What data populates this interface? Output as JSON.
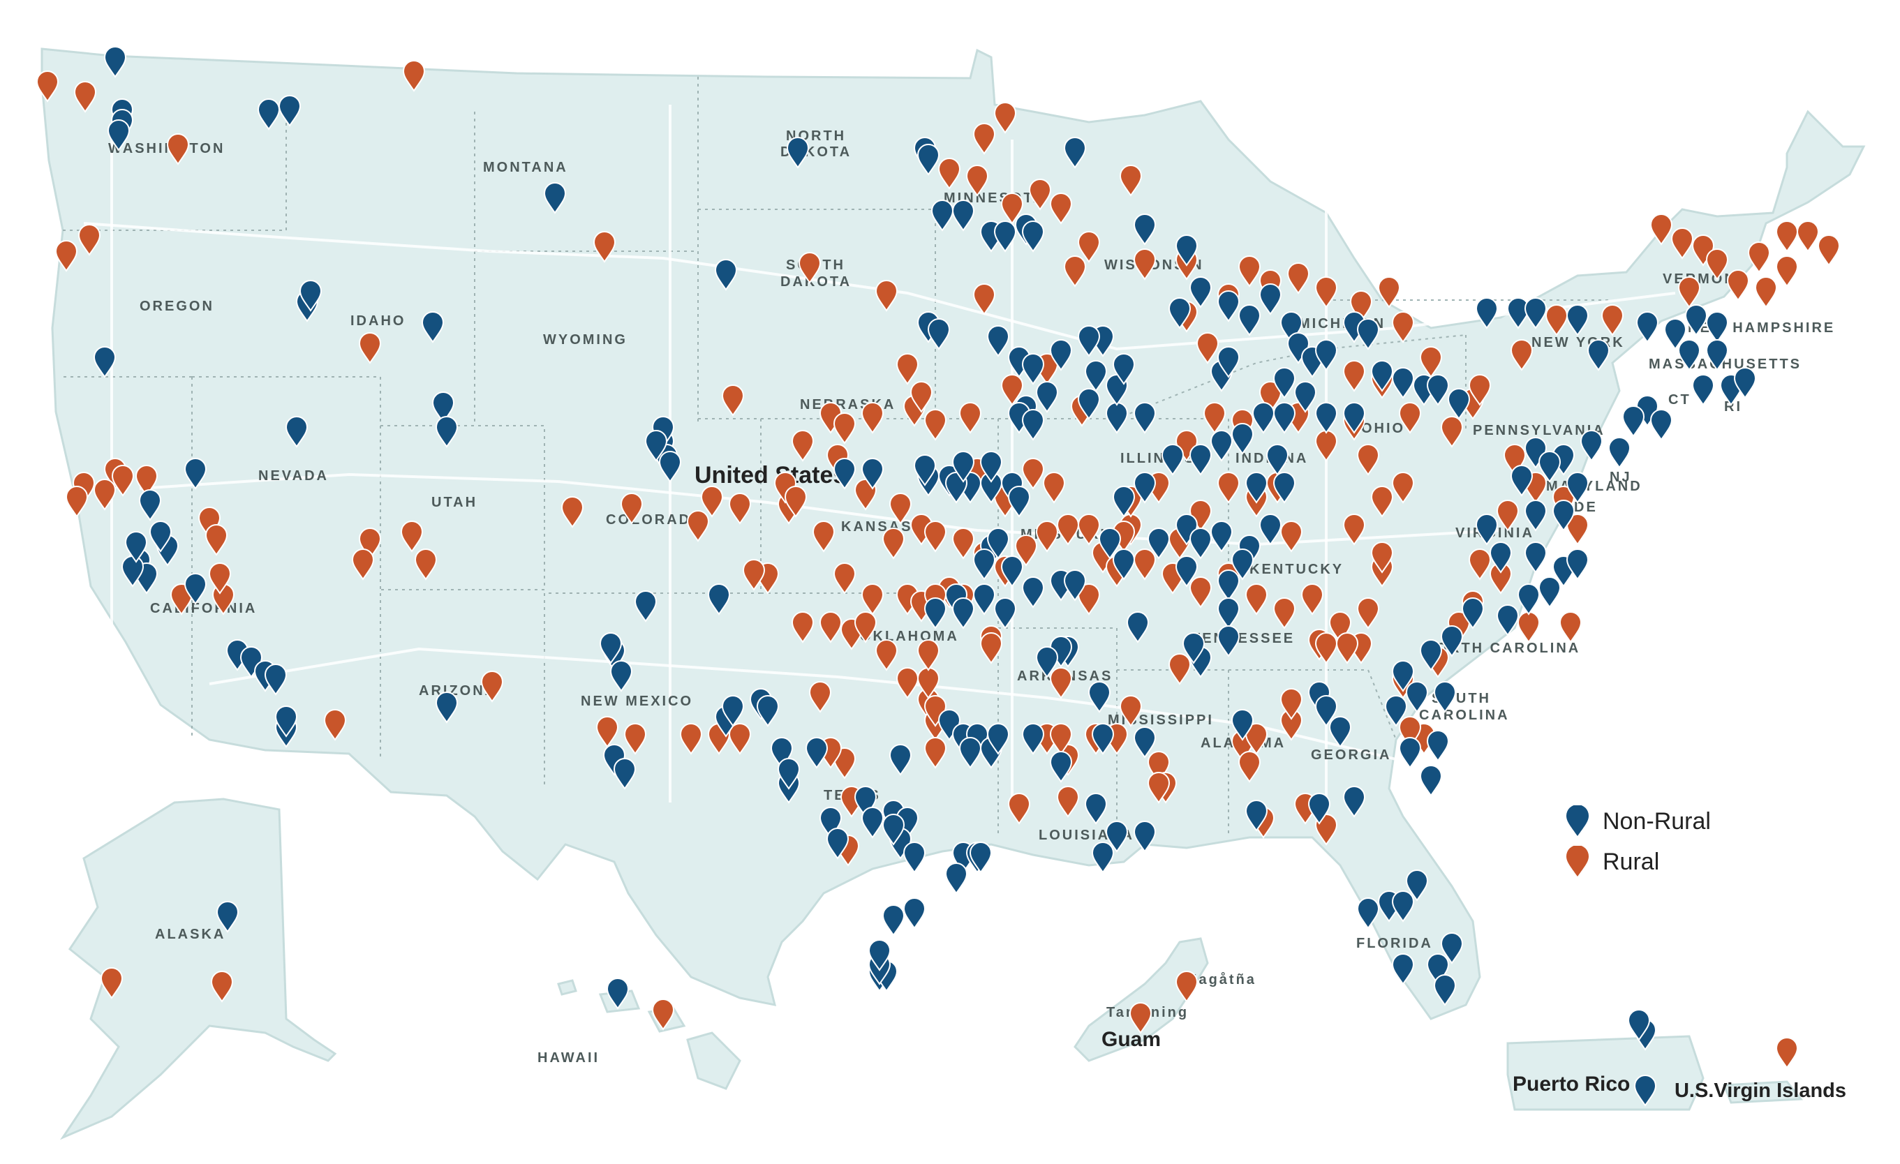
{
  "map": {
    "country_label": "United States",
    "territory_labels": {
      "hawaii": "HAWAII",
      "guam": "Guam",
      "guam_town_1": "Tamuning",
      "guam_town_2": "Hagåtña",
      "puerto_rico": "Puerto Rico",
      "usvi": "U.S.Virgin Islands"
    },
    "state_labels": {
      "washington": "WASHINGTON",
      "oregon": "OREGON",
      "california": "CALIFORNIA",
      "nevada": "NEVADA",
      "idaho": "IDAHO",
      "montana": "MONTANA",
      "wyoming": "WYOMING",
      "utah": "UTAH",
      "arizona": "ARIZONA",
      "colorado": "COLORADO",
      "new_mexico": "NEW MEXICO",
      "north_dakota_1": "NORTH",
      "north_dakota_2": "DAKOTA",
      "south_dakota_1": "SOUTH",
      "south_dakota_2": "DAKOTA",
      "nebraska": "NEBRASKA",
      "kansas": "KANSAS",
      "oklahoma": "OKLAHOMA",
      "texas": "TEXAS",
      "minnesota": "MINNESOTA",
      "wisconsin": "WISCONSIN",
      "missouri": "MISSOURI",
      "arkansas": "ARKANSAS",
      "louisiana": "LOUISIANA",
      "mississippi": "MISSISSIPPI",
      "alabama": "ALABAMA",
      "georgia": "GEORGIA",
      "florida": "FLORIDA",
      "tennessee": "TENNESSEE",
      "kentucky": "KENTUCKY",
      "south_carolina_1": "SOUTH",
      "south_carolina_2": "CAROLINA",
      "north_carolina": "NORTH CAROLINA",
      "virginia": "VIRGINIA",
      "maryland": "MARYLAND",
      "delaware": "DE",
      "nj": "NJ",
      "pennsylvania": "PENNSYLVANIA",
      "new_york": "NEW YORK",
      "vermont": "VERMONT",
      "new_hampshire": "NEW HAMPSHIRE",
      "massachusetts": "MASSACHUSETTS",
      "ct": "CT",
      "ri": "RI",
      "illinois": "ILLINOIS",
      "indiana": "INDIANA",
      "ohio": "OHIO",
      "michigan": "MICHIGAN",
      "alaska": "ALASKA"
    }
  },
  "legend": {
    "non_rural_label": "Non-Rural",
    "rural_label": "Rural"
  },
  "colors": {
    "non_rural": "#14507e",
    "rural": "#c8552a",
    "land": "#dfeeee",
    "label": "#4d5a5a"
  }
}
